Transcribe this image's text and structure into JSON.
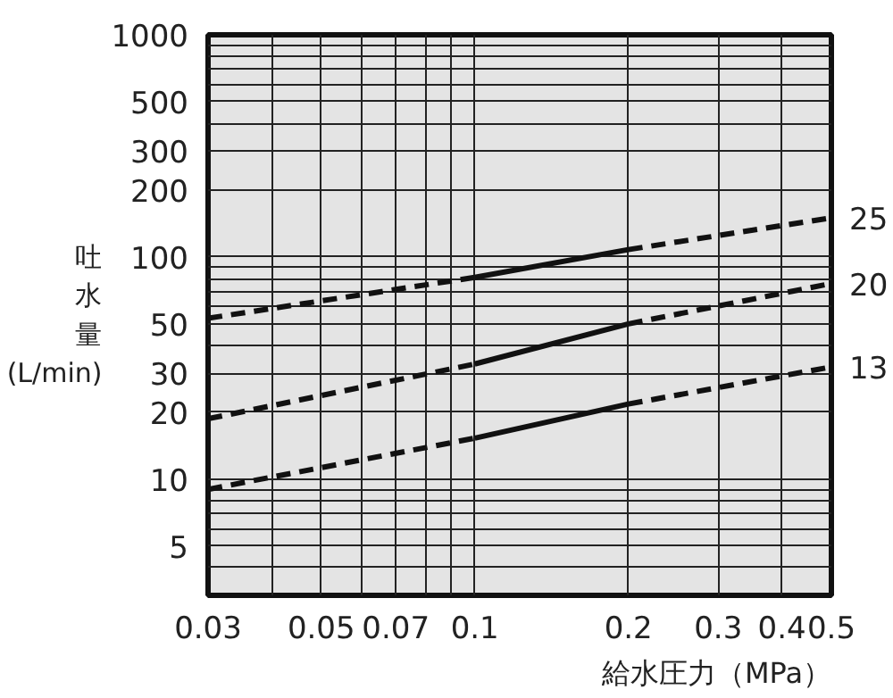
{
  "chart_data": {
    "type": "line",
    "xlabel": "給水圧力（MPa）",
    "ylabel": "吐水量 (L/min)",
    "log": "xy",
    "grid": true,
    "xlim": [
      0.03,
      0.5
    ],
    "xticks": [
      0.03,
      0.05,
      0.07,
      0.1,
      0.2,
      0.3,
      0.4,
      0.5
    ],
    "ylim": [
      3,
      1000
    ],
    "yticks": [
      5,
      10,
      20,
      30,
      50,
      100,
      200,
      300,
      500,
      1000
    ],
    "series": [
      {
        "color": "#111111",
        "line_style": "dashed",
        "x": [
          0.03,
          0.1
        ],
        "values": [
          53,
          81
        ]
      },
      {
        "color": "#111111",
        "line_style": "solid",
        "x": [
          0.1,
          0.2
        ],
        "values": [
          81,
          108
        ]
      },
      {
        "name": "25",
        "color": "#111111",
        "line_style": "dashed",
        "x": [
          0.2,
          0.5
        ],
        "values": [
          108,
          150
        ]
      },
      {
        "color": "#111111",
        "line_style": "dashed",
        "x": [
          0.03,
          0.1
        ],
        "values": [
          18.7,
          33
        ]
      },
      {
        "color": "#111111",
        "line_style": "solid",
        "x": [
          0.1,
          0.2
        ],
        "values": [
          33,
          50
        ]
      },
      {
        "name": "20",
        "color": "#111111",
        "line_style": "dashed",
        "x": [
          0.2,
          0.5
        ],
        "values": [
          50,
          76
        ]
      },
      {
        "color": "#111111",
        "line_style": "dashed",
        "x": [
          0.03,
          0.1
        ],
        "values": [
          9.0,
          15.3
        ]
      },
      {
        "color": "#111111",
        "line_style": "solid",
        "x": [
          0.1,
          0.2
        ],
        "values": [
          15.3,
          21.8
        ]
      },
      {
        "name": "13",
        "color": "#111111",
        "line_style": "dashed",
        "x": [
          0.2,
          0.5
        ],
        "values": [
          21.8,
          32
        ]
      }
    ]
  }
}
